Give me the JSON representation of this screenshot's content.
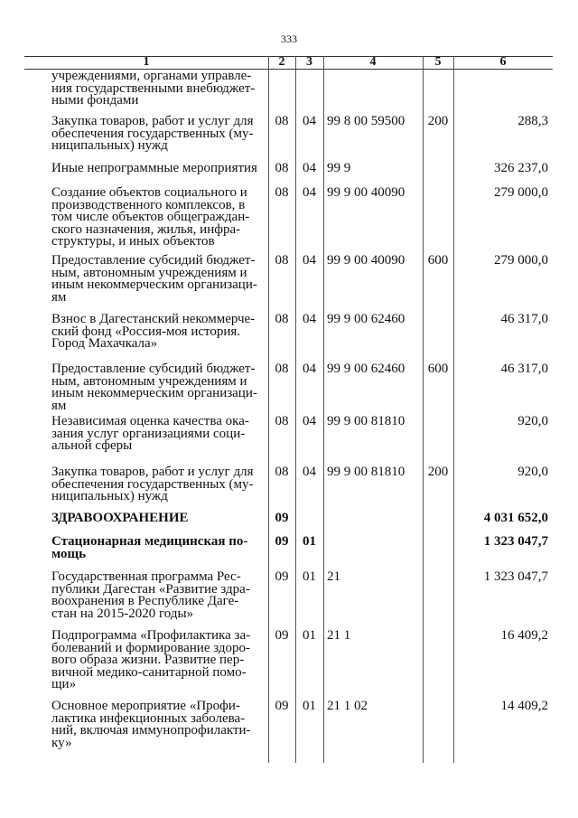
{
  "page_number": "333",
  "headers": [
    "1",
    "2",
    "3",
    "4",
    "5",
    "6"
  ],
  "rows": [
    {
      "name": "учреждениями, органами управле-\nния государственными внебюджет-\nными фондами",
      "c2": "",
      "c3": "",
      "c4": "",
      "c5": "",
      "c6": ""
    },
    {
      "name": "Закупка товаров, работ и услуг для\nобеспечения государственных (му-\nниципальных) нужд",
      "c2": "08",
      "c3": "04",
      "c4": "99 8 00 59500",
      "c5": "200",
      "c6": "288,3"
    },
    {
      "name": "Иные непрограммные мероприятия",
      "c2": "08",
      "c3": "04",
      "c4": "99 9",
      "c5": "",
      "c6": "326 237,0"
    },
    {
      "name": "Создание объектов социального и\nпроизводственного комплексов, в\nтом числе объектов общеграждан-\nского назначения, жилья, инфра-\nструктуры, и иных объектов",
      "c2": "08",
      "c3": "04",
      "c4": "99 9 00 40090",
      "c5": "",
      "c6": "279 000,0"
    },
    {
      "name": "Предоставление субсидий бюджет-\nным, автономным учреждениям и\nиным некоммерческим организаци-\nям",
      "c2": "08",
      "c3": "04",
      "c4": "99 9 00 40090",
      "c5": "600",
      "c6": "279 000,0"
    },
    {
      "name": "Взнос в Дагестанский некоммерче-\nский фонд «Россия-моя история.\nГород Махачкала»",
      "c2": "08",
      "c3": "04",
      "c4": "99 9 00 62460",
      "c5": "",
      "c6": "46 317,0"
    },
    {
      "name": "Предоставление субсидий бюджет-\nным, автономным учреждениям и\nиным некоммерческим организаци-\nям",
      "c2": "08",
      "c3": "04",
      "c4": "99 9 00 62460",
      "c5": "600",
      "c6": "46 317,0"
    },
    {
      "name": "Независимая оценка качества ока-\nзания услуг организациями соци-\nальной сферы",
      "c2": "08",
      "c3": "04",
      "c4": "99 9 00 81810",
      "c5": "",
      "c6": "920,0"
    },
    {
      "name": "Закупка товаров, работ и услуг для\nобеспечения государственных (му-\nниципальных) нужд",
      "c2": "08",
      "c3": "04",
      "c4": "99 9 00 81810",
      "c5": "200",
      "c6": "920,0"
    },
    {
      "name": "ЗДРАВООХРАНЕНИЕ",
      "c2": "09",
      "c3": "",
      "c4": "",
      "c5": "",
      "c6": "4 031 652,0",
      "bold": true
    },
    {
      "name": "Стационарная медицинская по-\nмощь",
      "c2": "09",
      "c3": "01",
      "c4": "",
      "c5": "",
      "c6": "1 323 047,7",
      "bold": true
    },
    {
      "name": "Государственная программа  Рес-\nпублики Дагестан «Развитие здра-\nвоохранения в Республике Даге-\nстан на 2015-2020 годы»",
      "c2": "09",
      "c3": "01",
      "c4": "21",
      "c5": "",
      "c6": "1 323 047,7"
    },
    {
      "name": "Подпрограмма «Профилактика за-\nболеваний и формирование здоро-\nвого образа жизни. Развитие пер-\nвичной медико-санитарной помо-\nщи»",
      "c2": "09",
      "c3": "01",
      "c4": "21 1",
      "c5": "",
      "c6": "16 409,2"
    },
    {
      "name": "Основное мероприятие «Профи-\nлактика инфекционных заболева-\nний, включая иммунопрофилакти-\nку»",
      "c2": "09",
      "c3": "01",
      "c4": "21 1 02",
      "c5": "",
      "c6": "14 409,2"
    }
  ]
}
